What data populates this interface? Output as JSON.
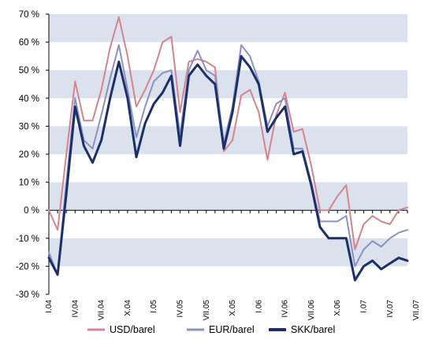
{
  "chart_data": {
    "type": "line",
    "ylim": [
      -30,
      70
    ],
    "yticks": [
      -30,
      -20,
      -10,
      0,
      10,
      20,
      30,
      40,
      50,
      60,
      70
    ],
    "ytick_labels": [
      "-30 %",
      "-20 %",
      "-10 %",
      "0 %",
      "10 %",
      "20 %",
      "30 %",
      "40 %",
      "50 %",
      "60 %",
      "70 %"
    ],
    "bands": [
      [
        60,
        70
      ],
      [
        40,
        50
      ],
      [
        20,
        30
      ],
      [
        0,
        10
      ],
      [
        -20,
        -10
      ]
    ],
    "x_labels": [
      "I.04",
      "IV.04",
      "VII.04",
      "X.04",
      "I.05",
      "IV.05",
      "VII.05",
      "X.05",
      "I.06",
      "IV.06",
      "VII.06",
      "X.06",
      "I.07",
      "IV.07",
      "VII.07"
    ],
    "legend_position": "bottom",
    "colors": {
      "band": "#dbe1ed",
      "axis": "#000000"
    },
    "series": [
      {
        "name": "USD/barel",
        "color": "#d4848e",
        "width": 2,
        "values": [
          0,
          -7,
          20,
          46,
          32,
          32,
          43,
          58,
          69,
          55,
          37,
          43,
          50,
          60,
          62,
          35,
          53,
          54,
          53,
          51,
          21,
          25,
          41,
          43,
          35,
          18,
          34,
          42,
          28,
          29,
          16,
          0,
          0,
          5,
          9,
          -14,
          -5,
          -2,
          -4,
          -5,
          0,
          1
        ]
      },
      {
        "name": "EUR/barel",
        "color": "#8b91c0",
        "width": 2,
        "values": [
          -15,
          -23,
          10,
          40,
          25,
          22,
          34,
          47,
          59,
          43,
          26,
          37,
          46,
          49,
          50,
          27,
          50,
          57,
          50,
          48,
          24,
          37,
          59,
          55,
          46,
          30,
          38,
          40,
          22,
          22,
          10,
          -4,
          -4,
          -4,
          -2,
          -20,
          -14,
          -11,
          -13,
          -10,
          -8,
          -7
        ]
      },
      {
        "name": "SKK/barel",
        "color": "#1a2f6b",
        "width": 3,
        "values": [
          -17,
          -23,
          6,
          37,
          23,
          17,
          25,
          40,
          53,
          40,
          19,
          31,
          38,
          42,
          48,
          23,
          48,
          52,
          48,
          45,
          22,
          35,
          55,
          51,
          45,
          28,
          33,
          37,
          20,
          21,
          9,
          -6,
          -10,
          -10,
          -10,
          -25,
          -20,
          -18,
          -21,
          -19,
          -17,
          -18
        ]
      }
    ]
  }
}
